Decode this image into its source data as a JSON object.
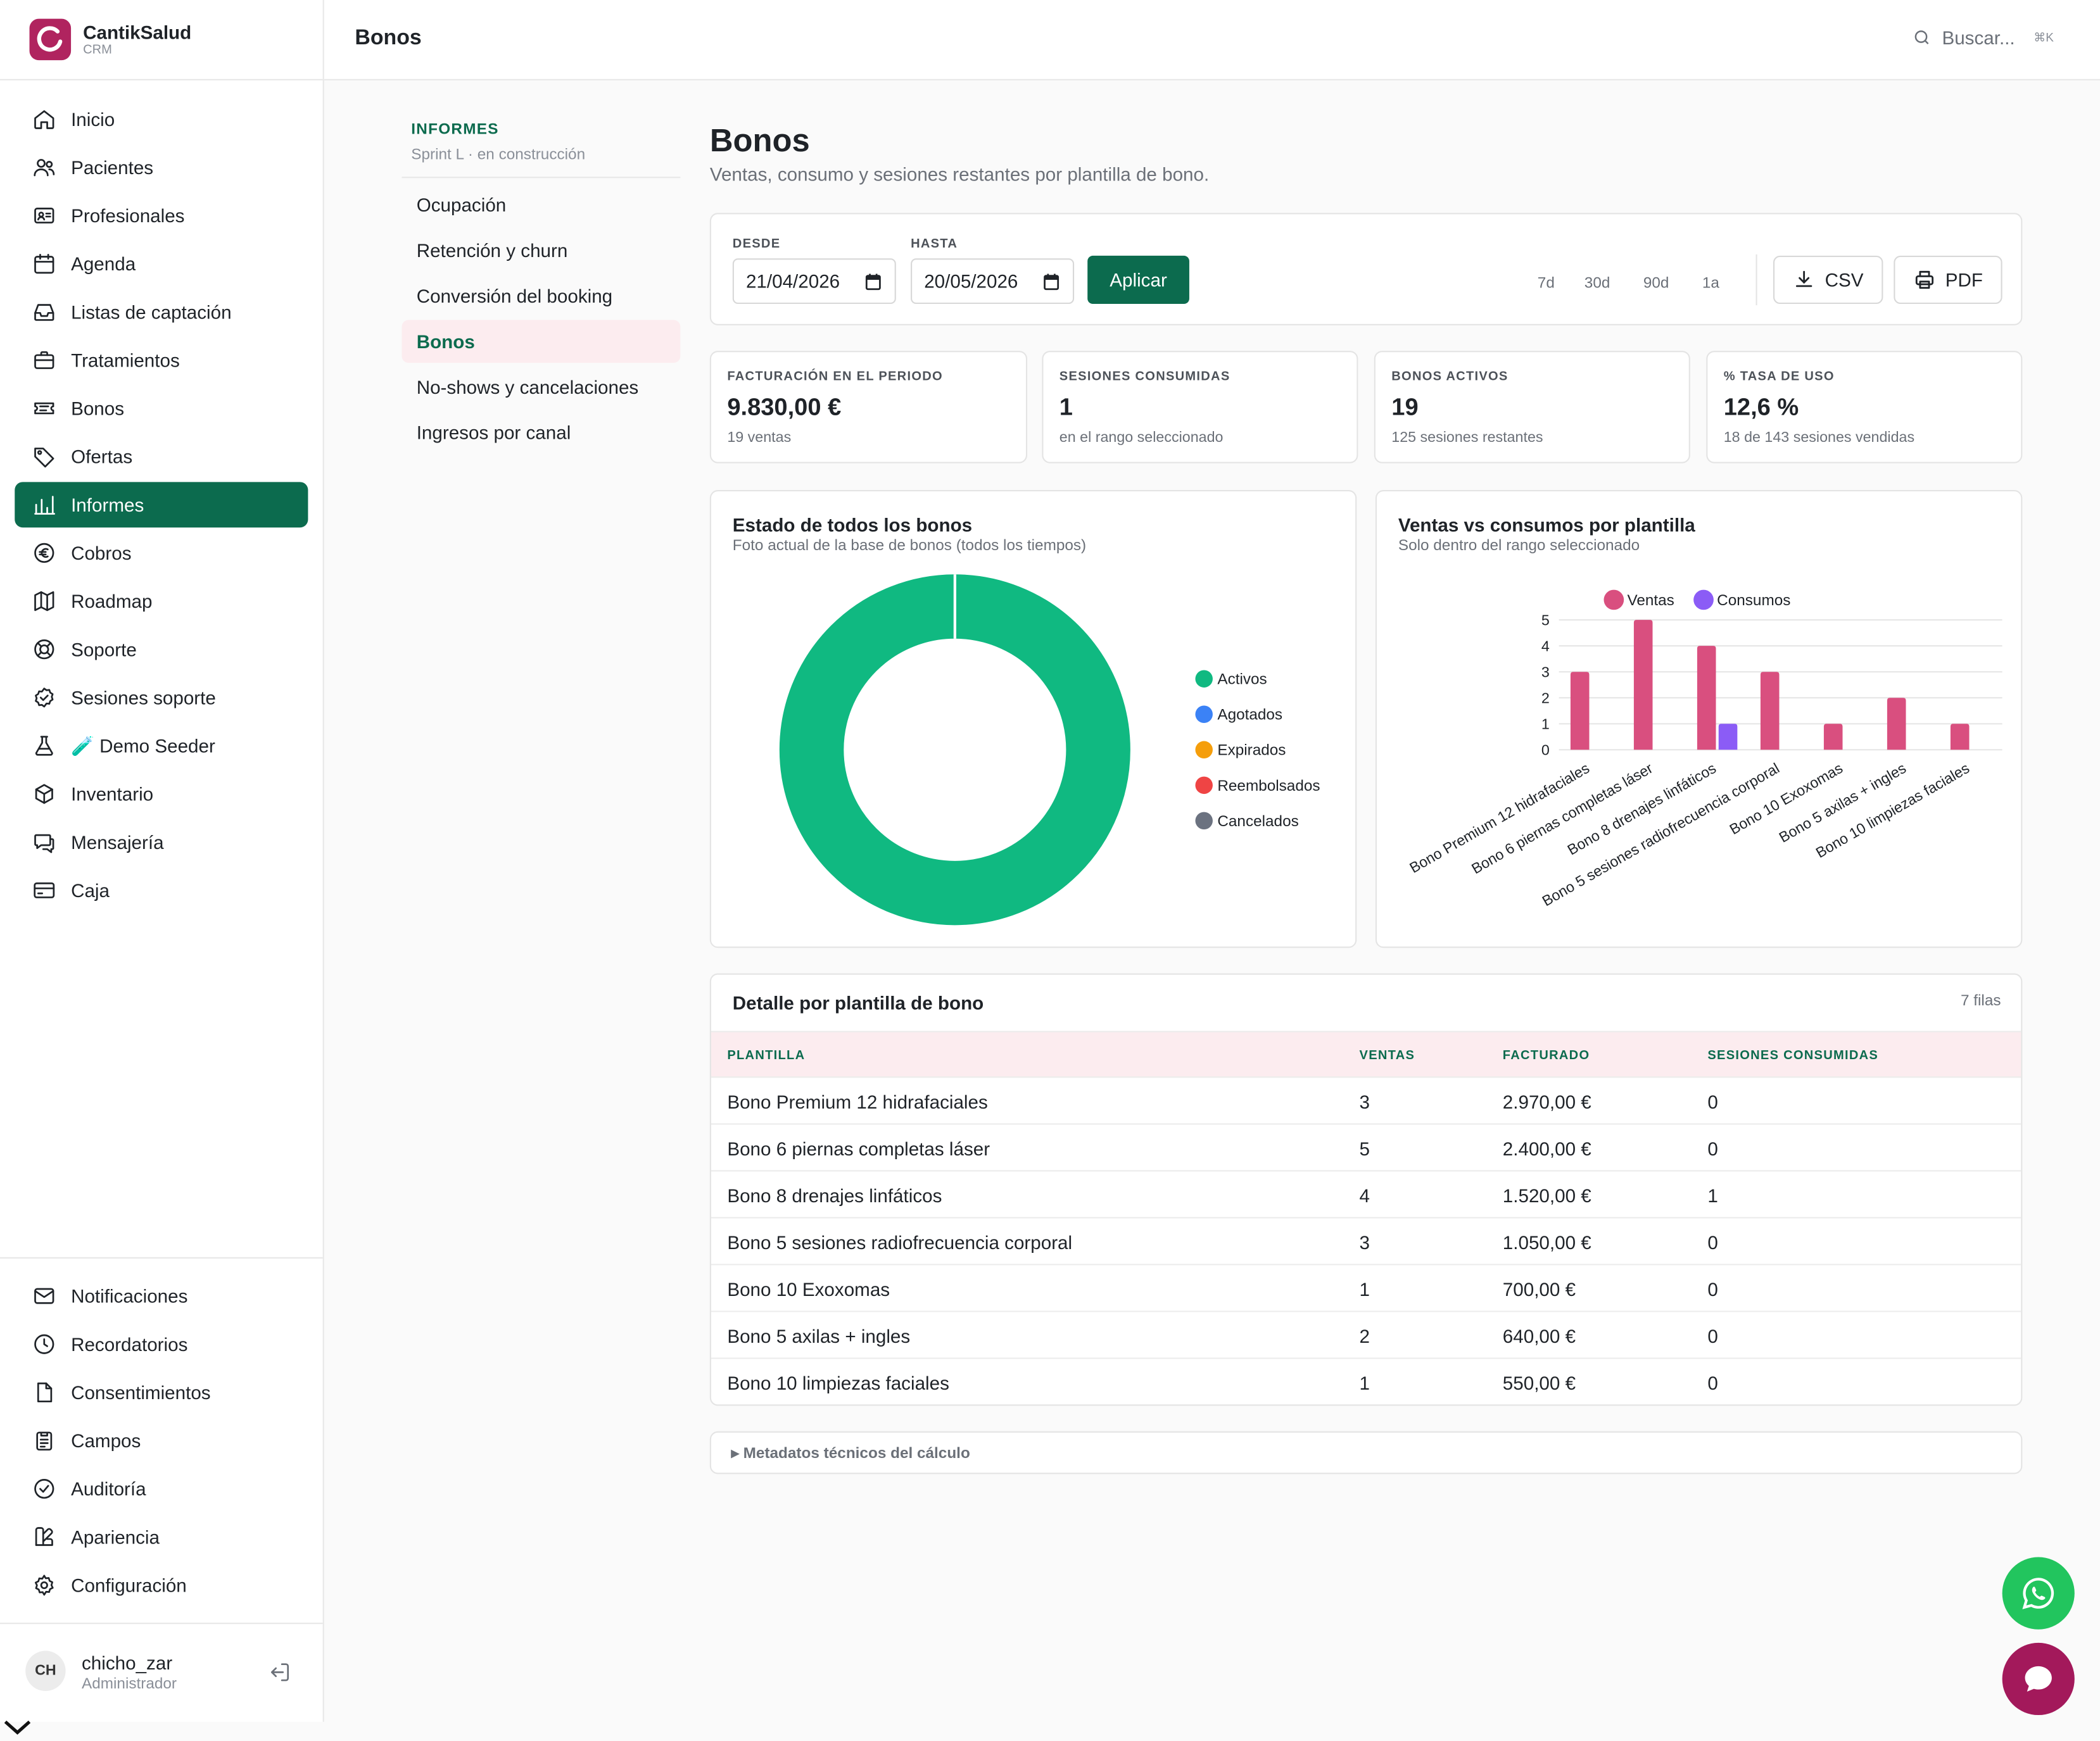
{
  "brand": {
    "name": "CantikSalud",
    "sub": "CRM"
  },
  "sidebar": {
    "items": [
      {
        "label": "Inicio",
        "icon": "home-icon"
      },
      {
        "label": "Pacientes",
        "icon": "users-icon"
      },
      {
        "label": "Profesionales",
        "icon": "id-card-icon"
      },
      {
        "label": "Agenda",
        "icon": "calendar-icon"
      },
      {
        "label": "Listas de captación",
        "icon": "inbox-icon"
      },
      {
        "label": "Tratamientos",
        "icon": "briefcase-icon"
      },
      {
        "label": "Bonos",
        "icon": "ticket-icon"
      },
      {
        "label": "Ofertas",
        "icon": "tag-icon"
      },
      {
        "label": "Informes",
        "icon": "bar-chart-icon",
        "active": true
      },
      {
        "label": "Cobros",
        "icon": "euro-icon"
      },
      {
        "label": "Roadmap",
        "icon": "map-icon"
      },
      {
        "label": "Soporte",
        "icon": "lifebuoy-icon"
      },
      {
        "label": "Sesiones soporte",
        "icon": "badge-check-icon"
      },
      {
        "label": "🧪 Demo Seeder",
        "icon": "flask-icon"
      },
      {
        "label": "Inventario",
        "icon": "box-icon"
      },
      {
        "label": "Mensajería",
        "icon": "chat-icon"
      },
      {
        "label": "Caja",
        "icon": "credit-card-icon"
      }
    ],
    "bottom_items": [
      {
        "label": "Notificaciones",
        "icon": "mail-icon"
      },
      {
        "label": "Recordatorios",
        "icon": "clock-icon"
      },
      {
        "label": "Consentimientos",
        "icon": "file-icon"
      },
      {
        "label": "Campos",
        "icon": "clipboard-icon"
      },
      {
        "label": "Auditoría",
        "icon": "shield-check-icon"
      },
      {
        "label": "Apariencia",
        "icon": "palette-icon"
      },
      {
        "label": "Configuración",
        "icon": "gear-icon"
      }
    ]
  },
  "user": {
    "initials": "CH",
    "name": "chicho_zar",
    "role": "Administrador"
  },
  "header": {
    "title": "Bonos",
    "search_placeholder": "Buscar...",
    "search_kbd": "⌘K"
  },
  "reports": {
    "heading": "INFORMES",
    "sub": "Sprint L · en construcción",
    "items": [
      {
        "label": "Ocupación"
      },
      {
        "label": "Retención y churn"
      },
      {
        "label": "Conversión del booking"
      },
      {
        "label": "Bonos",
        "active": true
      },
      {
        "label": "No-shows y cancelaciones"
      },
      {
        "label": "Ingresos por canal"
      }
    ]
  },
  "page": {
    "title": "Bonos",
    "subtitle": "Ventas, consumo y sesiones restantes por plantilla de bono."
  },
  "filters": {
    "from_label": "DESDE",
    "from_value": "21/04/2026",
    "to_label": "HASTA",
    "to_value": "20/05/2026",
    "apply": "Aplicar",
    "ranges": [
      "7d",
      "30d",
      "90d",
      "1a"
    ],
    "csv": "CSV",
    "pdf": "PDF"
  },
  "kpis": [
    {
      "label": "FACTURACIÓN EN EL PERIODO",
      "value": "9.830,00 €",
      "sub": "19 ventas"
    },
    {
      "label": "SESIONES CONSUMIDAS",
      "value": "1",
      "sub": "en el rango seleccionado"
    },
    {
      "label": "BONOS ACTIVOS",
      "value": "19",
      "sub": "125 sesiones restantes"
    },
    {
      "label": "% TASA DE USO",
      "value": "12,6 %",
      "sub": "18 de 143 sesiones vendidas"
    }
  ],
  "charts_text": {
    "donut_title": "Estado de todos los bonos",
    "donut_sub": "Foto actual de la base de bonos (todos los tiempos)",
    "bar_title": "Ventas vs consumos por plantilla",
    "bar_sub": "Solo dentro del rango seleccionado"
  },
  "chart_data": [
    {
      "type": "pie",
      "title": "Estado de todos los bonos",
      "categories": [
        "Activos",
        "Agotados",
        "Expirados",
        "Reembolsados",
        "Cancelados"
      ],
      "values": [
        19,
        0,
        0,
        0,
        0
      ],
      "colors": [
        "#10b981",
        "#3b82f6",
        "#f59e0b",
        "#ef4444",
        "#6b7280"
      ],
      "legend": "right"
    },
    {
      "type": "bar",
      "title": "Ventas vs consumos por plantilla",
      "categories": [
        "Bono Premium 12 hidrafaciales",
        "Bono 6 piernas completas láser",
        "Bono 8 drenajes linfáticos",
        "Bono 5 sesiones radiofrecuencia corporal",
        "Bono 10 Exoxomas",
        "Bono 5 axilas + ingles",
        "Bono 10 limpiezas faciales"
      ],
      "series": [
        {
          "name": "Ventas",
          "values": [
            3,
            5,
            4,
            3,
            1,
            2,
            1
          ],
          "color": "#d94f7f"
        },
        {
          "name": "Consumos",
          "values": [
            0,
            0,
            1,
            0,
            0,
            0,
            0
          ],
          "color": "#8b5cf6"
        }
      ],
      "ylim": [
        0,
        5
      ],
      "yticks": [
        0,
        1,
        2,
        3,
        4,
        5
      ],
      "legend": "top",
      "grid": true
    }
  ],
  "table": {
    "title": "Detalle por plantilla de bono",
    "count": "7 filas",
    "columns": [
      "PLANTILLA",
      "VENTAS",
      "FACTURADO",
      "SESIONES CONSUMIDAS"
    ],
    "rows": [
      [
        "Bono Premium 12 hidrafaciales",
        "3",
        "2.970,00 €",
        "0"
      ],
      [
        "Bono 6 piernas completas láser",
        "5",
        "2.400,00 €",
        "0"
      ],
      [
        "Bono 8 drenajes linfáticos",
        "4",
        "1.520,00 €",
        "1"
      ],
      [
        "Bono 5 sesiones radiofrecuencia corporal",
        "3",
        "1.050,00 €",
        "0"
      ],
      [
        "Bono 10 Exoxomas",
        "1",
        "700,00 €",
        "0"
      ],
      [
        "Bono 5 axilas + ingles",
        "2",
        "640,00 €",
        "0"
      ],
      [
        "Bono 10 limpiezas faciales",
        "1",
        "550,00 €",
        "0"
      ]
    ]
  },
  "meta": {
    "label": "▸ Metadatos técnicos del cálculo"
  }
}
